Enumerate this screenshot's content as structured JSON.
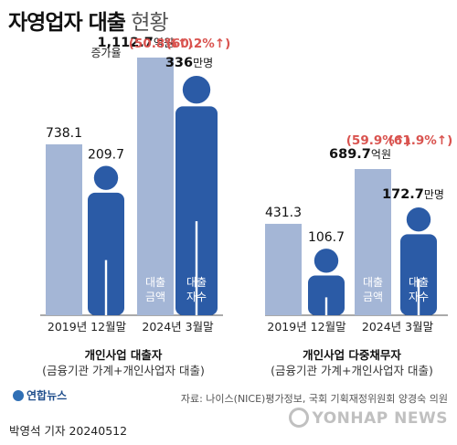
{
  "title": {
    "main": "자영업자 대출",
    "sub": "현황"
  },
  "colors": {
    "light_bar": "#a4b6d6",
    "person": "#2b5ba6",
    "increase": "#d9534f",
    "text": "#1a1a1a"
  },
  "increase_label": "증가율",
  "chart_data": [
    {
      "type": "bar",
      "title": "개인사업 대출자",
      "subtitle": "(금융기관 가계+개인사업자 대출)",
      "categories": [
        "2019년 12월말",
        "2024년 3월말"
      ],
      "series": [
        {
          "name": "대출금액",
          "values": [
            738.1,
            1112.7
          ],
          "labels": [
            "738.1",
            "1,112.7"
          ],
          "unit": "억원"
        },
        {
          "name": "대출자수",
          "values": [
            209.7,
            336
          ],
          "labels": [
            "209.7",
            "336"
          ],
          "unit": "만명"
        }
      ],
      "increase": {
        "amount": "(50.8%↑)",
        "borrowers": "(60.2%↑)"
      },
      "bar_labels": {
        "amount": [
          "대출",
          "금액"
        ],
        "borrowers": [
          "대출",
          "자수"
        ]
      }
    },
    {
      "type": "bar",
      "title": "개인사업 다중채무자",
      "subtitle": "(금융기관 가계+개인사업자 대출)",
      "categories": [
        "2019년 12월말",
        "2024년 3월말"
      ],
      "series": [
        {
          "name": "대출금액",
          "values": [
            431.3,
            689.7
          ],
          "labels": [
            "431.3",
            "689.7"
          ],
          "unit": "억원"
        },
        {
          "name": "대출자수",
          "values": [
            106.7,
            172.7
          ],
          "labels": [
            "106.7",
            "172.7"
          ],
          "unit": "만명"
        }
      ],
      "increase": {
        "amount": "(59.9%↑)",
        "borrowers": "(61.9%↑)"
      },
      "bar_labels": {
        "amount": [
          "대출",
          "금액"
        ],
        "borrowers": [
          "대출",
          "자수"
        ]
      }
    }
  ],
  "source": "자료: 나이스(NICE)평가정보, 국회 기획재정위원회 양경숙 의원",
  "logo": "연합뉴스",
  "author": "박영석 기자 20240512",
  "watermark": "YONHAP NEWS"
}
